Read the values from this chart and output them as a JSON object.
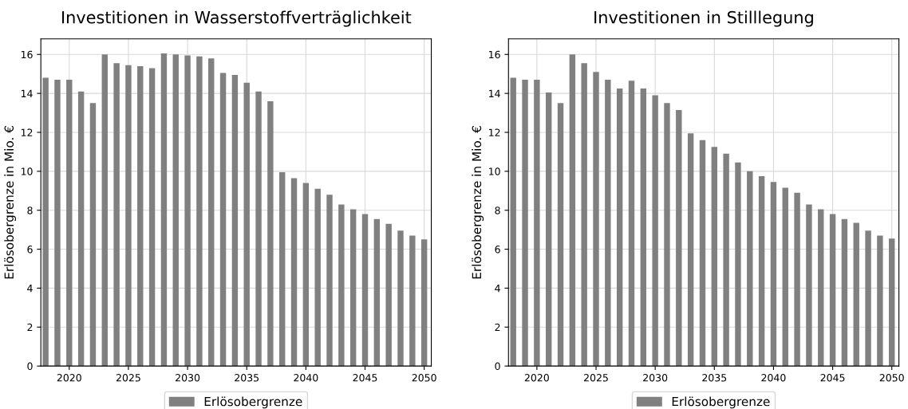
{
  "chart_data": [
    {
      "type": "bar",
      "title": "Investitionen in Wasserstoffverträglichkeit",
      "ylabel": "Erlösobergrenze in Mio. €",
      "x": [
        2018,
        2019,
        2020,
        2021,
        2022,
        2023,
        2024,
        2025,
        2026,
        2027,
        2028,
        2029,
        2030,
        2031,
        2032,
        2033,
        2034,
        2035,
        2036,
        2037,
        2038,
        2039,
        2040,
        2041,
        2042,
        2043,
        2044,
        2045,
        2046,
        2047,
        2048,
        2049,
        2050
      ],
      "series": [
        {
          "name": "Erlösobergrenze",
          "color": "#808080",
          "values": [
            14.8,
            14.7,
            14.7,
            14.1,
            13.5,
            16.0,
            15.55,
            15.45,
            15.4,
            15.3,
            16.05,
            16.0,
            15.95,
            15.9,
            15.8,
            15.05,
            14.95,
            14.55,
            14.1,
            13.6,
            9.95,
            9.65,
            9.4,
            9.1,
            8.8,
            8.3,
            8.05,
            7.8,
            7.55,
            7.3,
            6.95,
            6.7,
            6.5
          ]
        }
      ],
      "xlim": [
        2017.6,
        2050.6
      ],
      "xticks": [
        2020,
        2025,
        2030,
        2035,
        2040,
        2045,
        2050
      ],
      "ylim": [
        0,
        16.8
      ],
      "yticks": [
        0,
        2,
        4,
        6,
        8,
        10,
        12,
        14,
        16
      ],
      "grid": true,
      "legend": "bottom"
    },
    {
      "type": "bar",
      "title": "Investitionen in Stilllegung",
      "ylabel": "Erlösobergrenze in Mio. €",
      "x": [
        2018,
        2019,
        2020,
        2021,
        2022,
        2023,
        2024,
        2025,
        2026,
        2027,
        2028,
        2029,
        2030,
        2031,
        2032,
        2033,
        2034,
        2035,
        2036,
        2037,
        2038,
        2039,
        2040,
        2041,
        2042,
        2043,
        2044,
        2045,
        2046,
        2047,
        2048,
        2049,
        2050
      ],
      "series": [
        {
          "name": "Erlösobergrenze",
          "color": "#808080",
          "values": [
            14.8,
            14.7,
            14.7,
            14.05,
            13.5,
            16.0,
            15.55,
            15.1,
            14.7,
            14.25,
            14.65,
            14.25,
            13.9,
            13.5,
            13.15,
            11.95,
            11.6,
            11.25,
            10.9,
            10.45,
            10.0,
            9.75,
            9.45,
            9.15,
            8.9,
            8.3,
            8.05,
            7.8,
            7.55,
            7.35,
            6.95,
            6.7,
            6.55
          ]
        }
      ],
      "xlim": [
        2017.6,
        2050.6
      ],
      "xticks": [
        2020,
        2025,
        2030,
        2035,
        2040,
        2045,
        2050
      ],
      "ylim": [
        0,
        16.8
      ],
      "yticks": [
        0,
        2,
        4,
        6,
        8,
        10,
        12,
        14,
        16
      ],
      "grid": true,
      "legend": "bottom"
    }
  ]
}
